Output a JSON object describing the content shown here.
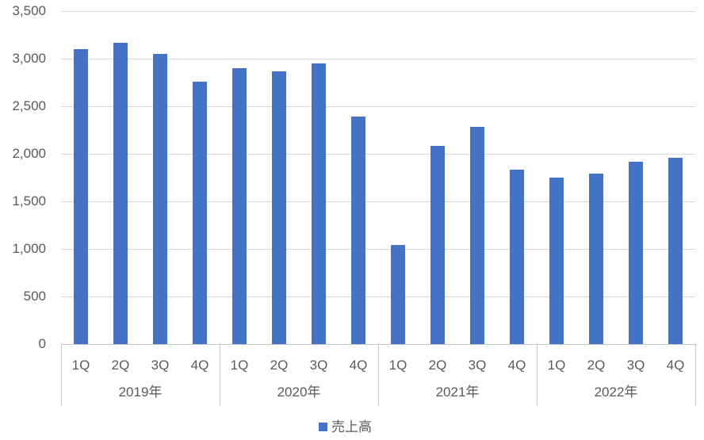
{
  "chart_data": {
    "type": "bar",
    "title": "",
    "xlabel": "",
    "ylabel": "",
    "ylim": [
      0,
      3500
    ],
    "ytick_interval": 500,
    "ytick_labels": [
      "3,500",
      "3,000",
      "2,500",
      "2,000",
      "1,500",
      "1,000",
      "500",
      "0"
    ],
    "grid": true,
    "legend_position": "bottom",
    "series": [
      {
        "name": "売上高",
        "values": [
          3100,
          3170,
          3050,
          2760,
          2900,
          2870,
          2950,
          2390,
          1040,
          2080,
          2280,
          1830,
          1750,
          1790,
          1920,
          1960
        ]
      }
    ],
    "category_groups": [
      {
        "label": "2019年",
        "quarters": [
          "1Q",
          "2Q",
          "3Q",
          "4Q"
        ],
        "values": [
          3100,
          3170,
          3050,
          2760
        ]
      },
      {
        "label": "2020年",
        "quarters": [
          "1Q",
          "2Q",
          "3Q",
          "4Q"
        ],
        "values": [
          2900,
          2870,
          2950,
          2390
        ]
      },
      {
        "label": "2021年",
        "quarters": [
          "1Q",
          "2Q",
          "3Q",
          "4Q"
        ],
        "values": [
          1040,
          2080,
          2280,
          1830
        ]
      },
      {
        "label": "2022年",
        "quarters": [
          "1Q",
          "2Q",
          "3Q",
          "4Q"
        ],
        "values": [
          1750,
          1790,
          1920,
          1960
        ]
      }
    ],
    "colors": {
      "bar": "#4472C4",
      "gridline": "#D9D9D9",
      "axis_line": "#C6C6C6",
      "tick_label": "#595959",
      "background": "#FFFFFF"
    }
  },
  "legend": {
    "label": "売上高",
    "swatch_color": "#4472C4"
  }
}
